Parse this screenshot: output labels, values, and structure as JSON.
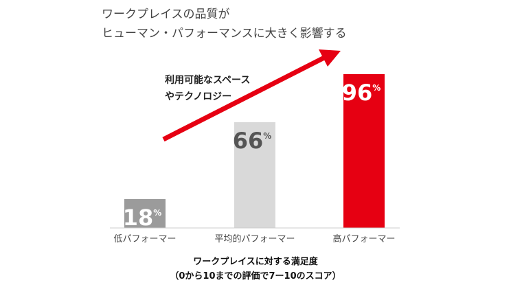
{
  "chart_data": {
    "type": "bar",
    "title_lines": [
      "ワークプレイスの品質が",
      "ヒューマン・パフォーマンスに大きく影響する"
    ],
    "categories": [
      "低パフォーマー",
      "平均的パフォーマー",
      "高パフォーマー"
    ],
    "values": [
      18,
      66,
      96
    ],
    "value_unit": "%",
    "xlabel_lines": [
      "ワークプレイスに対する満足度",
      "（0から10までの評価で7ー10のスコア）"
    ],
    "annotation_lines": [
      "利用可能なスペース",
      "やテクノロジー"
    ],
    "bar_colors": [
      "#9b9b9b",
      "#d9d9d9",
      "#e60012"
    ],
    "value_label_colors": [
      "#ffffff",
      "#555555",
      "#ffffff"
    ],
    "arrow_color": "#e60012",
    "ylim": [
      0,
      100
    ],
    "grid": false
  }
}
